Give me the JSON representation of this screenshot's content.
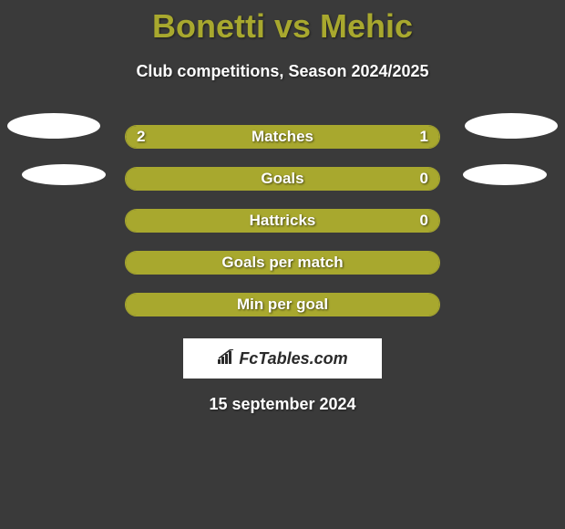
{
  "title": "Bonetti vs Mehic",
  "subtitle": "Club competitions, Season 2024/2025",
  "colors": {
    "background": "#3a3a3a",
    "accent": "#a8a82e",
    "text": "#ffffff",
    "ellipse": "#ffffff",
    "logo_bg": "#ffffff",
    "logo_text": "#2a2a2a"
  },
  "stats": [
    {
      "label": "Matches",
      "left_value": "2",
      "right_value": "1",
      "left_pct": 66.7,
      "right_pct": 33.3,
      "show_left": true,
      "show_right": true
    },
    {
      "label": "Goals",
      "left_value": "",
      "right_value": "0",
      "left_pct": 0,
      "right_pct": 100,
      "show_left": false,
      "show_right": true
    },
    {
      "label": "Hattricks",
      "left_value": "",
      "right_value": "0",
      "left_pct": 0,
      "right_pct": 100,
      "show_left": false,
      "show_right": true
    },
    {
      "label": "Goals per match",
      "left_value": "",
      "right_value": "",
      "left_pct": 0,
      "right_pct": 100,
      "show_left": false,
      "show_right": false
    },
    {
      "label": "Min per goal",
      "left_value": "",
      "right_value": "",
      "left_pct": 0,
      "right_pct": 100,
      "show_left": false,
      "show_right": false
    }
  ],
  "logo_text": "FcTables.com",
  "date": "15 september 2024"
}
